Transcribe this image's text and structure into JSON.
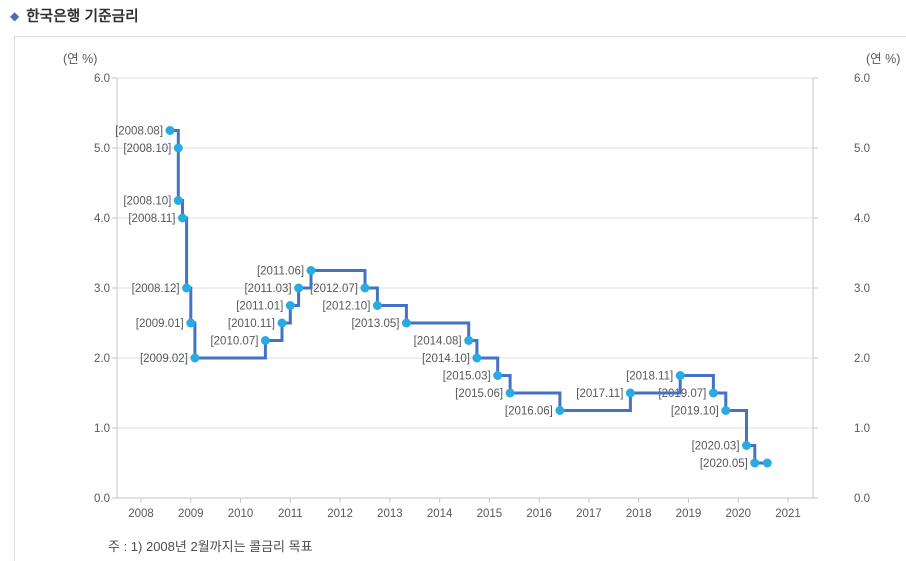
{
  "page": {
    "title": "한국은행 기준금리",
    "note": "주 : 1) 2008년 2월까지는 콜금리 목표"
  },
  "chart_data": {
    "type": "line",
    "step": true,
    "title": "한국은행 기준금리",
    "unit_label_left": "(연 %)",
    "unit_label_right": "(연 %)",
    "ylabel": "(연 %)",
    "xlabel": "",
    "ylim": [
      0.0,
      6.0
    ],
    "grid": true,
    "legend_position": "none",
    "colors": {
      "line": "#4472c4",
      "marker": "#29abe2"
    },
    "y_axis": {
      "tick_labels": [
        "6.0",
        "5.0",
        "4.0",
        "3.0",
        "2.0",
        "1.0",
        "0.0"
      ],
      "tick_values": [
        6,
        5,
        4,
        3,
        2,
        1,
        0
      ]
    },
    "x_axis": {
      "tick_labels": [
        "2008",
        "2009",
        "2010",
        "2011",
        "2012",
        "2013",
        "2014",
        "2015",
        "2016",
        "2017",
        "2018",
        "2019",
        "2020",
        "2021"
      ],
      "tick_values": [
        2008,
        2009,
        2010,
        2011,
        2012,
        2013,
        2014,
        2015,
        2016,
        2017,
        2018,
        2019,
        2020,
        2021
      ]
    },
    "series": [
      {
        "name": "한국은행 기준금리",
        "points": [
          {
            "label": "[2008.08]",
            "year": 2008,
            "month": 8,
            "rate": 5.25
          },
          {
            "label": "[2008.10]",
            "year": 2008,
            "month": 10,
            "rate": 5.0
          },
          {
            "label": "[2008.10]",
            "year": 2008,
            "month": 10,
            "rate": 4.25
          },
          {
            "label": "[2008.11]",
            "year": 2008,
            "month": 11,
            "rate": 4.0
          },
          {
            "label": "[2008.12]",
            "year": 2008,
            "month": 12,
            "rate": 3.0
          },
          {
            "label": "[2009.01]",
            "year": 2009,
            "month": 1,
            "rate": 2.5
          },
          {
            "label": "[2009.02]",
            "year": 2009,
            "month": 2,
            "rate": 2.0
          },
          {
            "label": "[2010.07]",
            "year": 2010,
            "month": 7,
            "rate": 2.25
          },
          {
            "label": "[2010.11]",
            "year": 2010,
            "month": 11,
            "rate": 2.5
          },
          {
            "label": "[2011.01]",
            "year": 2011,
            "month": 1,
            "rate": 2.75
          },
          {
            "label": "[2011.03]",
            "year": 2011,
            "month": 3,
            "rate": 3.0
          },
          {
            "label": "[2011.06]",
            "year": 2011,
            "month": 6,
            "rate": 3.25
          },
          {
            "label": "[2012.07]",
            "year": 2012,
            "month": 7,
            "rate": 3.0
          },
          {
            "label": "[2012.10]",
            "year": 2012,
            "month": 10,
            "rate": 2.75
          },
          {
            "label": "[2013.05]",
            "year": 2013,
            "month": 5,
            "rate": 2.5
          },
          {
            "label": "[2014.08]",
            "year": 2014,
            "month": 8,
            "rate": 2.25
          },
          {
            "label": "[2014.10]",
            "year": 2014,
            "month": 10,
            "rate": 2.0
          },
          {
            "label": "[2015.03]",
            "year": 2015,
            "month": 3,
            "rate": 1.75
          },
          {
            "label": "[2015.06]",
            "year": 2015,
            "month": 6,
            "rate": 1.5
          },
          {
            "label": "[2016.06]",
            "year": 2016,
            "month": 6,
            "rate": 1.25
          },
          {
            "label": "[2017.11]",
            "year": 2017,
            "month": 11,
            "rate": 1.5
          },
          {
            "label": "[2018.11]",
            "year": 2018,
            "month": 11,
            "rate": 1.75
          },
          {
            "label": "[2019.07]",
            "year": 2019,
            "month": 7,
            "rate": 1.5
          },
          {
            "label": "[2019.10]",
            "year": 2019,
            "month": 10,
            "rate": 1.25
          },
          {
            "label": "[2020.03]",
            "year": 2020,
            "month": 3,
            "rate": 0.75
          },
          {
            "label": "[2020.05]",
            "year": 2020,
            "month": 5,
            "rate": 0.5
          },
          {
            "label": "",
            "year": 2020,
            "month": 8,
            "rate": 0.5
          }
        ]
      }
    ]
  }
}
